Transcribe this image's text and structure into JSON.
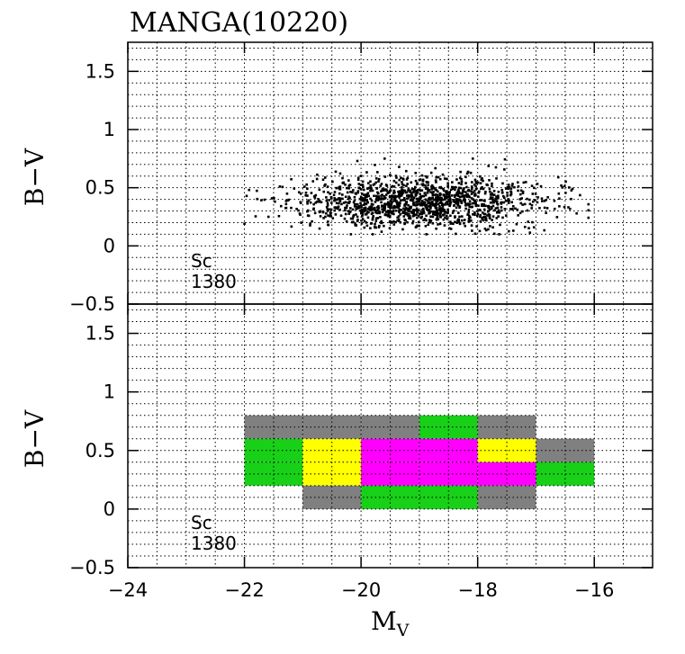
{
  "chart_data": {
    "title": "MANGA(10220)",
    "xlabel_main": "M",
    "xlabel_sub": "V",
    "xlim": [
      -24,
      -15
    ],
    "x_ticks": [
      -24,
      -22,
      -20,
      -18,
      -16
    ],
    "x_tick_labels": [
      "−24",
      "−22",
      "−20",
      "−18",
      "−16"
    ],
    "panels": [
      {
        "type": "scatter",
        "ylabel": "B−V",
        "ylim": [
          -0.5,
          1.75
        ],
        "y_ticks": [
          -0.5,
          0,
          0.5,
          1,
          1.5
        ],
        "y_tick_labels": [
          "−0.5",
          "0",
          "0.5",
          "1",
          "1.5"
        ],
        "grid": true,
        "annotation_type": "Sc",
        "annotation_count": "1380",
        "n_points": 1380,
        "point_color": "#000000",
        "distribution": {
          "x_range": [
            -22.0,
            -16.1
          ],
          "y_range": [
            0.1,
            0.75
          ],
          "x_center": -19.0,
          "y_center": 0.38
        }
      },
      {
        "type": "heatmap",
        "ylabel": "B−V",
        "ylim": [
          -0.5,
          1.75
        ],
        "y_ticks": [
          -0.5,
          0,
          0.5,
          1,
          1.5
        ],
        "y_tick_labels": [
          "−0.5",
          "0",
          "0.5",
          "1",
          "1.5"
        ],
        "grid": true,
        "annotation_type": "Sc",
        "annotation_count": "1380",
        "palette": {
          "gray": "#808080",
          "green": "#18d018",
          "yellow": "#ffff00",
          "magenta": "#ff00ff"
        },
        "cells": [
          {
            "x0": -22,
            "x1": -21,
            "y0": 0.6,
            "y1": 0.8,
            "color": "gray"
          },
          {
            "x0": -21,
            "x1": -20,
            "y0": 0.6,
            "y1": 0.8,
            "color": "gray"
          },
          {
            "x0": -20,
            "x1": -19,
            "y0": 0.6,
            "y1": 0.8,
            "color": "gray"
          },
          {
            "x0": -19,
            "x1": -18,
            "y0": 0.6,
            "y1": 0.8,
            "color": "green"
          },
          {
            "x0": -18,
            "x1": -17,
            "y0": 0.6,
            "y1": 0.8,
            "color": "gray"
          },
          {
            "x0": -22,
            "x1": -21,
            "y0": 0.4,
            "y1": 0.6,
            "color": "green"
          },
          {
            "x0": -21,
            "x1": -20,
            "y0": 0.4,
            "y1": 0.6,
            "color": "yellow"
          },
          {
            "x0": -20,
            "x1": -19,
            "y0": 0.4,
            "y1": 0.6,
            "color": "magenta"
          },
          {
            "x0": -19,
            "x1": -18,
            "y0": 0.4,
            "y1": 0.6,
            "color": "magenta"
          },
          {
            "x0": -18,
            "x1": -17,
            "y0": 0.4,
            "y1": 0.6,
            "color": "yellow"
          },
          {
            "x0": -17,
            "x1": -16,
            "y0": 0.4,
            "y1": 0.6,
            "color": "gray"
          },
          {
            "x0": -22,
            "x1": -21,
            "y0": 0.2,
            "y1": 0.4,
            "color": "green"
          },
          {
            "x0": -21,
            "x1": -20,
            "y0": 0.2,
            "y1": 0.4,
            "color": "yellow"
          },
          {
            "x0": -20,
            "x1": -19,
            "y0": 0.2,
            "y1": 0.4,
            "color": "magenta"
          },
          {
            "x0": -19,
            "x1": -18,
            "y0": 0.2,
            "y1": 0.4,
            "color": "magenta"
          },
          {
            "x0": -18,
            "x1": -17,
            "y0": 0.2,
            "y1": 0.4,
            "color": "magenta"
          },
          {
            "x0": -17,
            "x1": -16,
            "y0": 0.2,
            "y1": 0.4,
            "color": "green"
          },
          {
            "x0": -21,
            "x1": -20,
            "y0": 0.0,
            "y1": 0.2,
            "color": "gray"
          },
          {
            "x0": -20,
            "x1": -19,
            "y0": 0.0,
            "y1": 0.2,
            "color": "green"
          },
          {
            "x0": -19,
            "x1": -18,
            "y0": 0.0,
            "y1": 0.2,
            "color": "green"
          },
          {
            "x0": -18,
            "x1": -17,
            "y0": 0.0,
            "y1": 0.2,
            "color": "gray"
          }
        ]
      }
    ]
  }
}
